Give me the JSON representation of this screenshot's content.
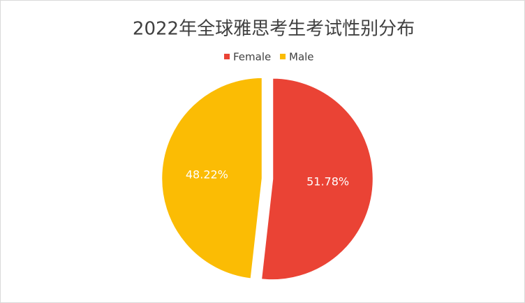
{
  "chart_data": {
    "type": "pie",
    "title": "2022年全球雅思考生考试性别分布",
    "categories": [
      "Female",
      "Male"
    ],
    "values": [
      51.78,
      48.22
    ],
    "value_labels": [
      "51.78%",
      "48.22%"
    ],
    "colors": [
      "#ea4335",
      "#fbbc04"
    ],
    "legend": "top"
  }
}
